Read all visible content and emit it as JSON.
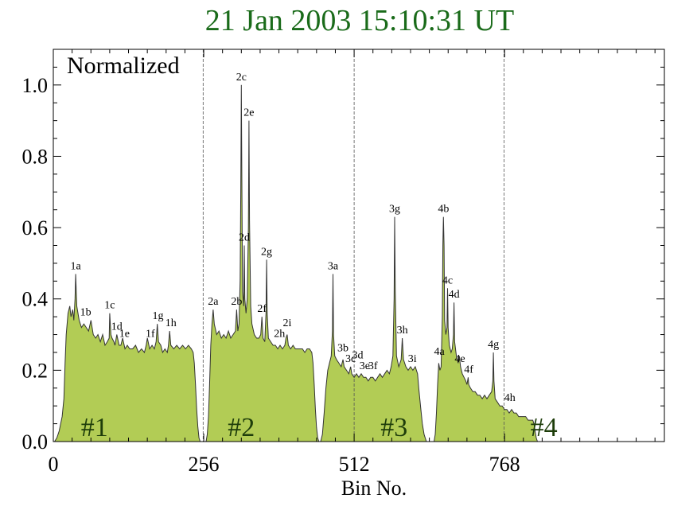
{
  "chart_data": {
    "type": "area",
    "title": "21 Jan  2003   15:10:31   UT",
    "xlabel": "Bin No.",
    "ylabel": "",
    "annotation": "Normalized",
    "xlim": [
      0,
      1040
    ],
    "ylim": [
      0,
      1.1
    ],
    "xticks": [
      0,
      256,
      512,
      768
    ],
    "yticks": [
      0.0,
      0.2,
      0.4,
      0.6,
      0.8,
      1.0
    ],
    "ytick_labels": [
      "0.0",
      "0.2",
      "0.4",
      "0.6",
      "0.8",
      "1.0"
    ],
    "grid": false,
    "fill_color": "#b2cc55",
    "line_color": "#333333",
    "title_color": "#1a6b1a",
    "section_dividers": [
      255,
      512,
      767
    ],
    "sections": [
      {
        "label": "#1",
        "x": 70
      },
      {
        "label": "#2",
        "x": 320
      },
      {
        "label": "#3",
        "x": 580
      },
      {
        "label": "#4",
        "x": 835
      }
    ],
    "segments": [
      {
        "start": 0,
        "end": 250,
        "points": [
          [
            0,
            0
          ],
          [
            2,
            0
          ],
          [
            6,
            0.01
          ],
          [
            10,
            0.03
          ],
          [
            15,
            0.07
          ],
          [
            18,
            0.12
          ],
          [
            20,
            0.22
          ],
          [
            22,
            0.3
          ],
          [
            25,
            0.36
          ],
          [
            28,
            0.38
          ],
          [
            30,
            0.35
          ],
          [
            33,
            0.37
          ],
          [
            35,
            0.34
          ],
          [
            37,
            0.4
          ],
          [
            38,
            0.47
          ],
          [
            40,
            0.38
          ],
          [
            44,
            0.34
          ],
          [
            48,
            0.32
          ],
          [
            52,
            0.33
          ],
          [
            56,
            0.32
          ],
          [
            60,
            0.31
          ],
          [
            64,
            0.34
          ],
          [
            68,
            0.3
          ],
          [
            72,
            0.29
          ],
          [
            76,
            0.3
          ],
          [
            80,
            0.28
          ],
          [
            84,
            0.3
          ],
          [
            88,
            0.27
          ],
          [
            92,
            0.28
          ],
          [
            95,
            0.29
          ],
          [
            96,
            0.36
          ],
          [
            98,
            0.3
          ],
          [
            100,
            0.29
          ],
          [
            103,
            0.28
          ],
          [
            105,
            0.27
          ],
          [
            108,
            0.3
          ],
          [
            112,
            0.27
          ],
          [
            115,
            0.27
          ],
          [
            118,
            0.29
          ],
          [
            122,
            0.26
          ],
          [
            126,
            0.27
          ],
          [
            130,
            0.26
          ],
          [
            135,
            0.26
          ],
          [
            140,
            0.27
          ],
          [
            145,
            0.25
          ],
          [
            150,
            0.26
          ],
          [
            155,
            0.25
          ],
          [
            158,
            0.27
          ],
          [
            160,
            0.29
          ],
          [
            164,
            0.26
          ],
          [
            168,
            0.27
          ],
          [
            172,
            0.26
          ],
          [
            175,
            0.28
          ],
          [
            177,
            0.33
          ],
          [
            179,
            0.28
          ],
          [
            183,
            0.27
          ],
          [
            186,
            0.25
          ],
          [
            190,
            0.26
          ],
          [
            194,
            0.25
          ],
          [
            196,
            0.27
          ],
          [
            198,
            0.31
          ],
          [
            200,
            0.27
          ],
          [
            205,
            0.26
          ],
          [
            210,
            0.27
          ],
          [
            215,
            0.26
          ],
          [
            220,
            0.27
          ],
          [
            225,
            0.26
          ],
          [
            230,
            0.27
          ],
          [
            235,
            0.26
          ],
          [
            238,
            0.25
          ],
          [
            240,
            0.22
          ],
          [
            242,
            0.16
          ],
          [
            244,
            0.09
          ],
          [
            246,
            0.04
          ],
          [
            248,
            0.01
          ],
          [
            250,
            0
          ]
        ]
      },
      {
        "start": 260,
        "end": 510,
        "points": [
          [
            260,
            0
          ],
          [
            262,
            0.02
          ],
          [
            264,
            0.07
          ],
          [
            266,
            0.16
          ],
          [
            268,
            0.27
          ],
          [
            270,
            0.33
          ],
          [
            272,
            0.37
          ],
          [
            274,
            0.33
          ],
          [
            278,
            0.3
          ],
          [
            282,
            0.31
          ],
          [
            286,
            0.29
          ],
          [
            290,
            0.3
          ],
          [
            294,
            0.29
          ],
          [
            298,
            0.31
          ],
          [
            302,
            0.29
          ],
          [
            306,
            0.3
          ],
          [
            310,
            0.31
          ],
          [
            312,
            0.37
          ],
          [
            314,
            0.31
          ],
          [
            316,
            0.33
          ],
          [
            318,
            0.45
          ],
          [
            319,
            0.7
          ],
          [
            320,
            1.0
          ],
          [
            321,
            0.72
          ],
          [
            322,
            0.42
          ],
          [
            324,
            0.38
          ],
          [
            325,
            0.55
          ],
          [
            326,
            0.4
          ],
          [
            328,
            0.36
          ],
          [
            330,
            0.4
          ],
          [
            332,
            0.6
          ],
          [
            333,
            0.9
          ],
          [
            334,
            0.62
          ],
          [
            336,
            0.38
          ],
          [
            338,
            0.33
          ],
          [
            342,
            0.3
          ],
          [
            346,
            0.29
          ],
          [
            350,
            0.29
          ],
          [
            353,
            0.3
          ],
          [
            355,
            0.35
          ],
          [
            357,
            0.29
          ],
          [
            360,
            0.28
          ],
          [
            362,
            0.36
          ],
          [
            363,
            0.51
          ],
          [
            364,
            0.36
          ],
          [
            366,
            0.29
          ],
          [
            370,
            0.28
          ],
          [
            374,
            0.27
          ],
          [
            378,
            0.27
          ],
          [
            382,
            0.26
          ],
          [
            386,
            0.27
          ],
          [
            390,
            0.26
          ],
          [
            394,
            0.27
          ],
          [
            396,
            0.29
          ],
          [
            398,
            0.3
          ],
          [
            400,
            0.27
          ],
          [
            404,
            0.26
          ],
          [
            408,
            0.27
          ],
          [
            412,
            0.26
          ],
          [
            416,
            0.26
          ],
          [
            420,
            0.26
          ],
          [
            424,
            0.26
          ],
          [
            428,
            0.25
          ],
          [
            432,
            0.26
          ],
          [
            436,
            0.26
          ],
          [
            440,
            0.25
          ],
          [
            442,
            0.22
          ],
          [
            444,
            0.16
          ],
          [
            446,
            0.09
          ],
          [
            448,
            0.04
          ],
          [
            450,
            0.01
          ],
          [
            452,
            0
          ]
        ]
      },
      {
        "start": 455,
        "end": 635,
        "points": [
          [
            455,
            0
          ],
          [
            458,
            0.02
          ],
          [
            461,
            0.08
          ],
          [
            464,
            0.15
          ],
          [
            467,
            0.2
          ],
          [
            470,
            0.22
          ],
          [
            473,
            0.24
          ],
          [
            475,
            0.31
          ],
          [
            476,
            0.47
          ],
          [
            477,
            0.3
          ],
          [
            479,
            0.24
          ],
          [
            482,
            0.23
          ],
          [
            486,
            0.22
          ],
          [
            490,
            0.21
          ],
          [
            493,
            0.23
          ],
          [
            495,
            0.21
          ],
          [
            499,
            0.2
          ],
          [
            503,
            0.19
          ],
          [
            506,
            0.21
          ],
          [
            508,
            0.19
          ],
          [
            512,
            0.18
          ],
          [
            516,
            0.19
          ],
          [
            520,
            0.18
          ],
          [
            524,
            0.19
          ],
          [
            528,
            0.18
          ],
          [
            532,
            0.18
          ],
          [
            536,
            0.17
          ],
          [
            540,
            0.18
          ],
          [
            544,
            0.18
          ],
          [
            548,
            0.17
          ],
          [
            552,
            0.18
          ],
          [
            556,
            0.19
          ],
          [
            560,
            0.18
          ],
          [
            564,
            0.19
          ],
          [
            568,
            0.2
          ],
          [
            572,
            0.19
          ],
          [
            575,
            0.21
          ],
          [
            578,
            0.24
          ],
          [
            580,
            0.4
          ],
          [
            581,
            0.63
          ],
          [
            582,
            0.42
          ],
          [
            584,
            0.24
          ],
          [
            588,
            0.21
          ],
          [
            592,
            0.23
          ],
          [
            594,
            0.29
          ],
          [
            596,
            0.23
          ],
          [
            600,
            0.21
          ],
          [
            604,
            0.2
          ],
          [
            608,
            0.21
          ],
          [
            612,
            0.2
          ],
          [
            616,
            0.21
          ],
          [
            620,
            0.19
          ],
          [
            622,
            0.15
          ],
          [
            625,
            0.1
          ],
          [
            628,
            0.05
          ],
          [
            631,
            0.02
          ],
          [
            634,
            0.005
          ],
          [
            635,
            0
          ]
        ]
      },
      {
        "start": 648,
        "end": 828,
        "points": [
          [
            648,
            0
          ],
          [
            650,
            0.02
          ],
          [
            652,
            0.08
          ],
          [
            654,
            0.16
          ],
          [
            656,
            0.22
          ],
          [
            658,
            0.2
          ],
          [
            660,
            0.21
          ],
          [
            662,
            0.35
          ],
          [
            663,
            0.55
          ],
          [
            664,
            0.63
          ],
          [
            665,
            0.55
          ],
          [
            666,
            0.34
          ],
          [
            668,
            0.3
          ],
          [
            670,
            0.32
          ],
          [
            671,
            0.43
          ],
          [
            672,
            0.32
          ],
          [
            674,
            0.27
          ],
          [
            677,
            0.25
          ],
          [
            679,
            0.26
          ],
          [
            681,
            0.3
          ],
          [
            682,
            0.39
          ],
          [
            683,
            0.28
          ],
          [
            686,
            0.24
          ],
          [
            689,
            0.22
          ],
          [
            691,
            0.24
          ],
          [
            693,
            0.21
          ],
          [
            696,
            0.19
          ],
          [
            699,
            0.18
          ],
          [
            702,
            0.17
          ],
          [
            704,
            0.16
          ],
          [
            706,
            0.18
          ],
          [
            707,
            0.16
          ],
          [
            710,
            0.15
          ],
          [
            714,
            0.14
          ],
          [
            718,
            0.14
          ],
          [
            722,
            0.13
          ],
          [
            726,
            0.13
          ],
          [
            730,
            0.12
          ],
          [
            734,
            0.13
          ],
          [
            738,
            0.12
          ],
          [
            742,
            0.13
          ],
          [
            746,
            0.14
          ],
          [
            748,
            0.17
          ],
          [
            749,
            0.25
          ],
          [
            750,
            0.17
          ],
          [
            752,
            0.12
          ],
          [
            756,
            0.11
          ],
          [
            760,
            0.1
          ],
          [
            764,
            0.1
          ],
          [
            768,
            0.09
          ],
          [
            772,
            0.09
          ],
          [
            776,
            0.08
          ],
          [
            780,
            0.09
          ],
          [
            784,
            0.08
          ],
          [
            788,
            0.08
          ],
          [
            792,
            0.07
          ],
          [
            796,
            0.07
          ],
          [
            800,
            0.07
          ],
          [
            804,
            0.07
          ],
          [
            808,
            0.06
          ],
          [
            812,
            0.06
          ],
          [
            816,
            0.06
          ],
          [
            818,
            0.05
          ],
          [
            820,
            0.03
          ],
          [
            822,
            0.01
          ],
          [
            824,
            0
          ]
        ]
      }
    ],
    "peak_labels": [
      {
        "label": "1a",
        "x": 38,
        "y": 0.47
      },
      {
        "label": "1b",
        "x": 55,
        "y": 0.34
      },
      {
        "label": "1c",
        "x": 96,
        "y": 0.36
      },
      {
        "label": "1d",
        "x": 108,
        "y": 0.3
      },
      {
        "label": "1e",
        "x": 121,
        "y": 0.28
      },
      {
        "label": "1f",
        "x": 165,
        "y": 0.28
      },
      {
        "label": "1g",
        "x": 178,
        "y": 0.33
      },
      {
        "label": "1h",
        "x": 200,
        "y": 0.31
      },
      {
        "label": "2a",
        "x": 272,
        "y": 0.37
      },
      {
        "label": "2b",
        "x": 312,
        "y": 0.37
      },
      {
        "label": "2c",
        "x": 320,
        "y": 1.0
      },
      {
        "label": "2d",
        "x": 325,
        "y": 0.55
      },
      {
        "label": "2e",
        "x": 333,
        "y": 0.9
      },
      {
        "label": "2f",
        "x": 355,
        "y": 0.35
      },
      {
        "label": "2g",
        "x": 363,
        "y": 0.51
      },
      {
        "label": "2h",
        "x": 385,
        "y": 0.28
      },
      {
        "label": "2i",
        "x": 398,
        "y": 0.31
      },
      {
        "label": "3a",
        "x": 476,
        "y": 0.47
      },
      {
        "label": "3b",
        "x": 493,
        "y": 0.24
      },
      {
        "label": "3c",
        "x": 506,
        "y": 0.21
      },
      {
        "label": "3d",
        "x": 518,
        "y": 0.22
      },
      {
        "label": "3e",
        "x": 530,
        "y": 0.19
      },
      {
        "label": "3f",
        "x": 544,
        "y": 0.19
      },
      {
        "label": "3g",
        "x": 581,
        "y": 0.63
      },
      {
        "label": "3h",
        "x": 594,
        "y": 0.29
      },
      {
        "label": "3i",
        "x": 611,
        "y": 0.21
      },
      {
        "label": "4a",
        "x": 657,
        "y": 0.23
      },
      {
        "label": "4b",
        "x": 664,
        "y": 0.63
      },
      {
        "label": "4c",
        "x": 671,
        "y": 0.43
      },
      {
        "label": "4d",
        "x": 682,
        "y": 0.39
      },
      {
        "label": "4e",
        "x": 692,
        "y": 0.21
      },
      {
        "label": "4f",
        "x": 707,
        "y": 0.18
      },
      {
        "label": "4g",
        "x": 749,
        "y": 0.25
      },
      {
        "label": "4h",
        "x": 777,
        "y": 0.1
      }
    ]
  }
}
